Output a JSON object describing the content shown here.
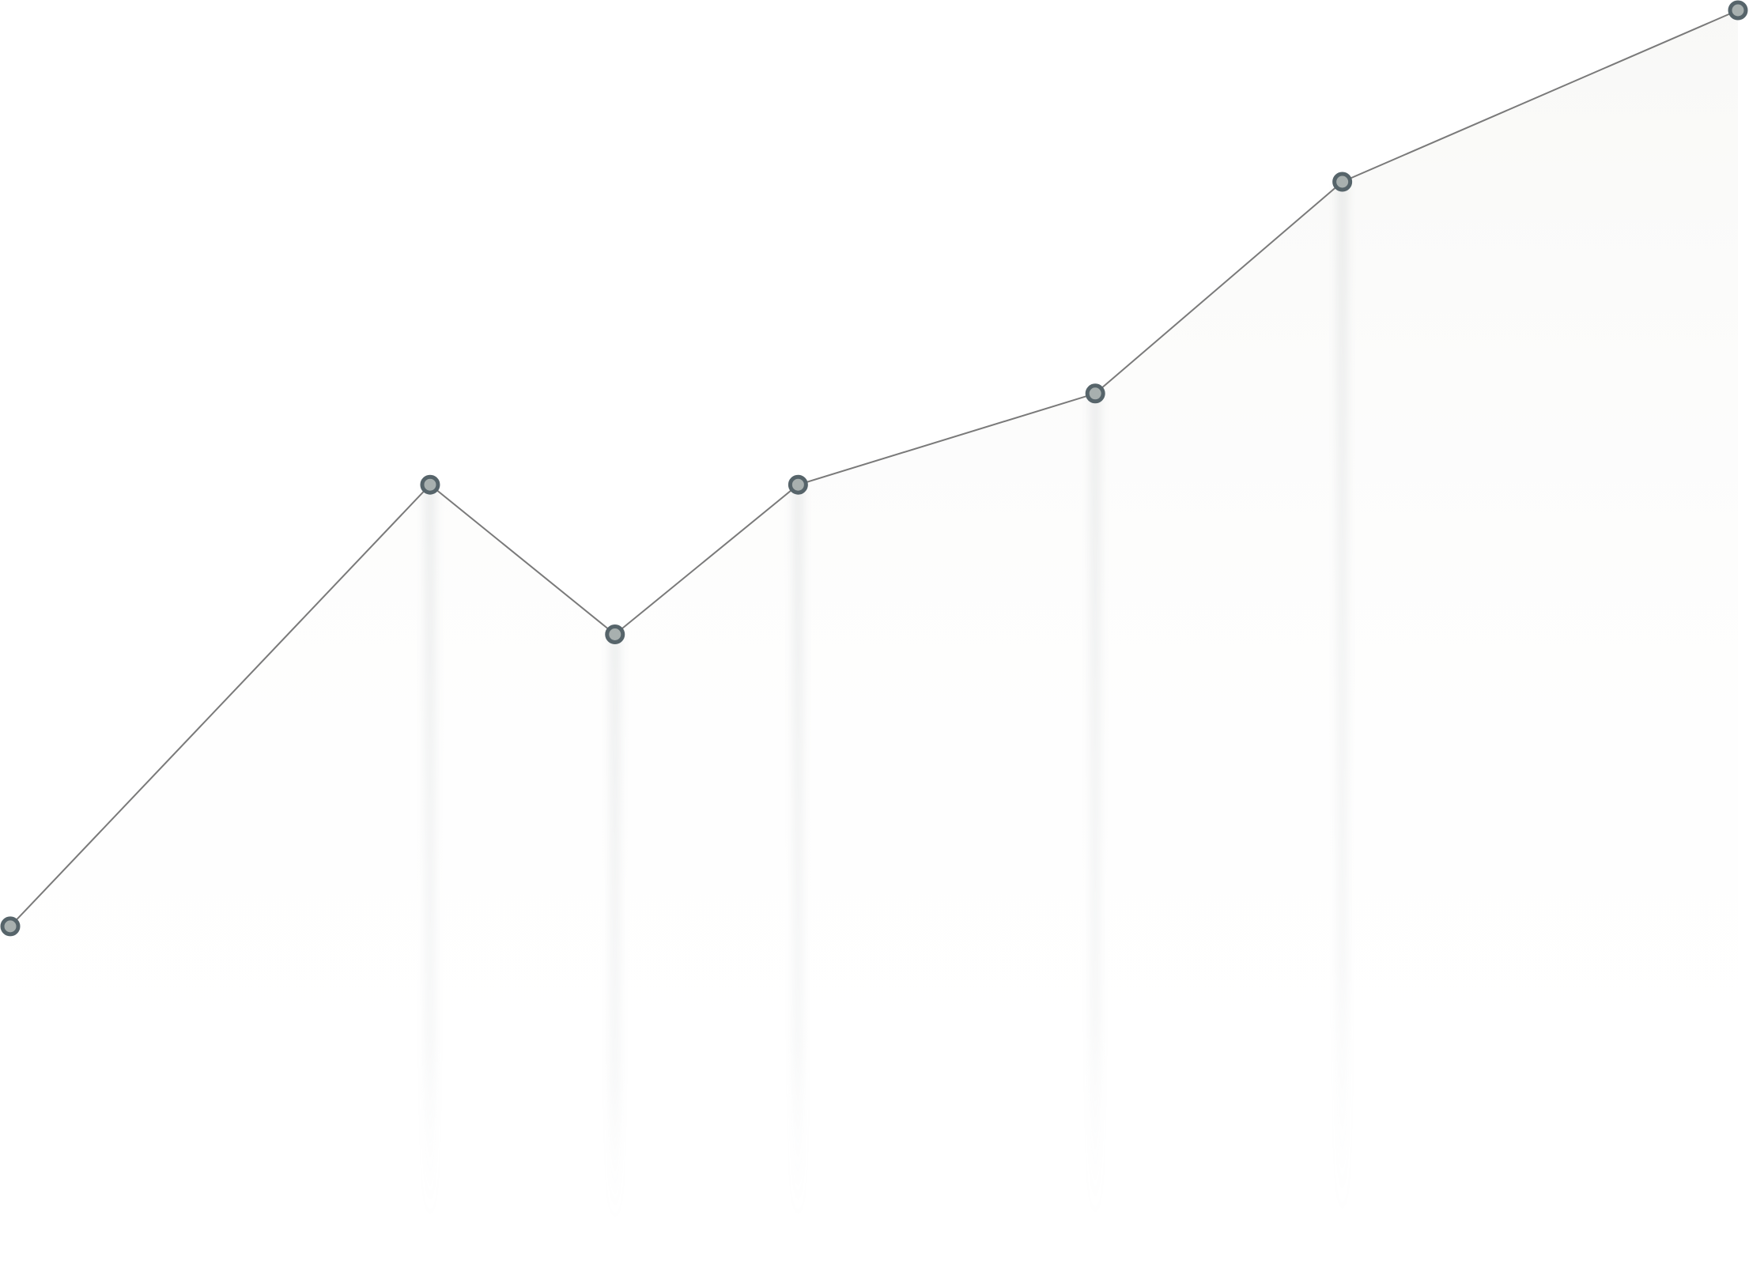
{
  "chart_data": {
    "type": "line",
    "x": [
      0,
      24.3,
      35.0,
      45.6,
      62.8,
      77.1,
      100
    ],
    "values": [
      24.7,
      61.0,
      48.7,
      61.0,
      68.5,
      85.9,
      100
    ],
    "color": "#7a7a7a",
    "xlim": [
      0,
      100
    ],
    "ylim": [
      0,
      100
    ]
  }
}
